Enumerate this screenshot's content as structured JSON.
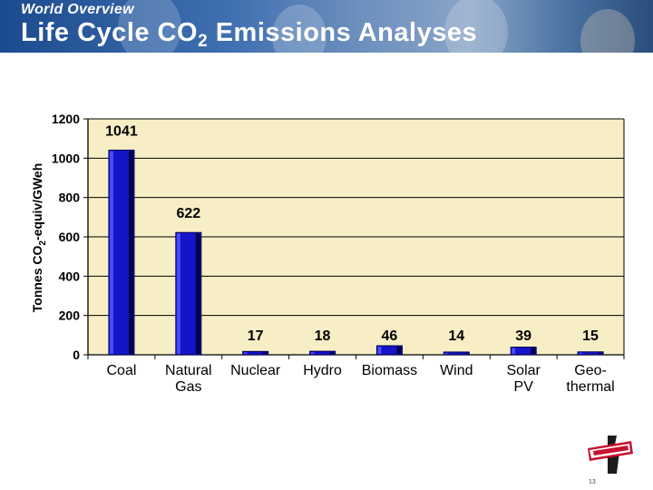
{
  "header": {
    "section_label": "World Overview",
    "title_main": "Life Cycle CO",
    "title_sub": "2",
    "title_rest": " Emissions Analyses"
  },
  "chart_data": {
    "type": "bar",
    "categories": [
      [
        "Coal"
      ],
      [
        "Natural",
        "Gas"
      ],
      [
        "Nuclear"
      ],
      [
        "Hydro"
      ],
      [
        "Biomass"
      ],
      [
        "Wind"
      ],
      [
        "Solar",
        "PV"
      ],
      [
        "Geo-",
        "thermal"
      ]
    ],
    "values": [
      1041,
      622,
      17,
      18,
      46,
      14,
      39,
      15
    ],
    "ylabel_parts": [
      "Tonnes CO",
      "2",
      "-equiv/GWeh"
    ],
    "ylim": [
      0,
      1200
    ],
    "yticks": [
      0,
      200,
      400,
      600,
      800,
      1000,
      1200
    ],
    "grid": true,
    "legend": "none",
    "colors": {
      "plot_background": "#f7eec6",
      "bar_fill": "#1414c8",
      "bar_dark": "#00004d",
      "bar_light": "#4a4aff",
      "grid": "#000000"
    }
  },
  "footer": {
    "page_number": "13",
    "logo_name": "BECHTEL"
  }
}
